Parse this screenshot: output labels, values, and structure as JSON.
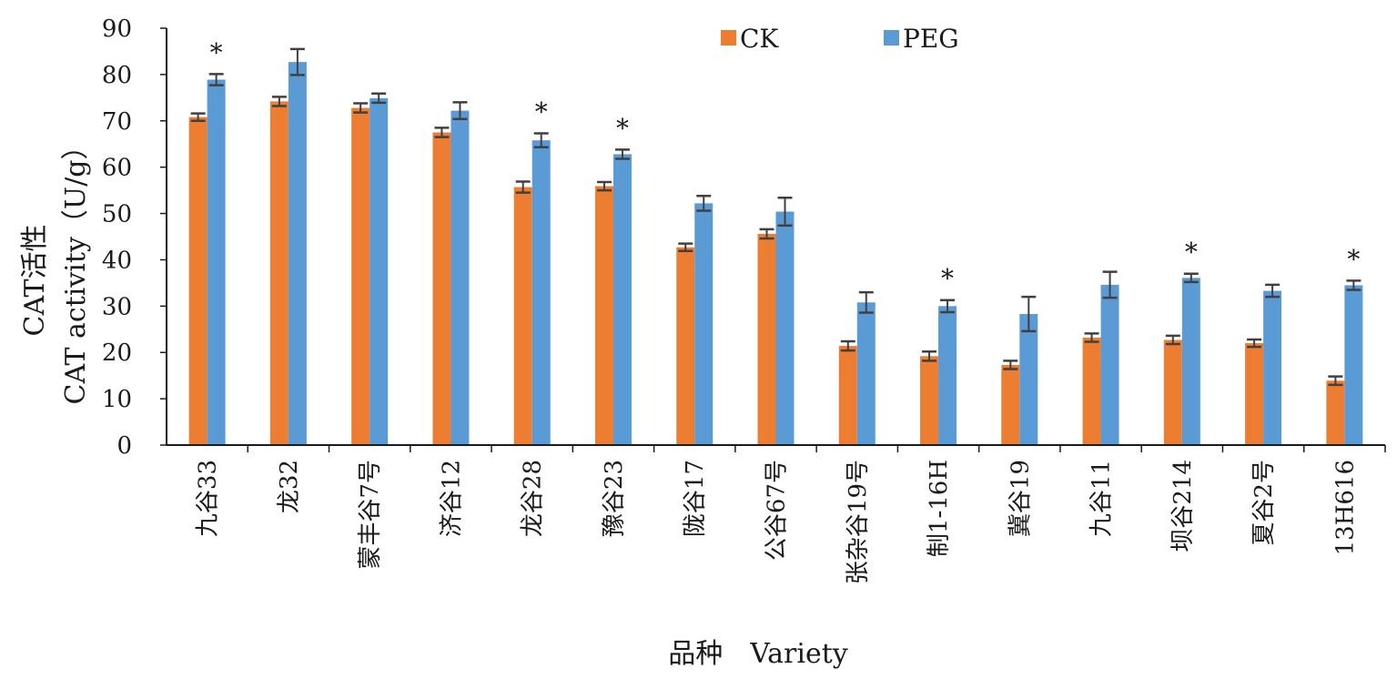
{
  "chart_data": {
    "type": "bar",
    "ylabel_cn": "CAT活性",
    "ylabel_en": "CAT activity（U/g）",
    "xlabel": "品种　Variety",
    "ylim": [
      0,
      90
    ],
    "yticks": [
      "0",
      "10",
      "20",
      "30",
      "40",
      "50",
      "60",
      "70",
      "80",
      "90"
    ],
    "categories": [
      "九谷33",
      "龙32",
      "蒙丰谷7号",
      "济谷12",
      "龙谷28",
      "豫谷23",
      "陇谷17",
      "公谷67号",
      "张杂谷19号",
      "制1-16H",
      "冀谷19",
      "九谷11",
      "坝谷214",
      "夏谷2号",
      "13H616"
    ],
    "series": [
      {
        "name": "CK",
        "color": "#ED7D31",
        "values": [
          70.8,
          74.2,
          72.8,
          67.5,
          55.7,
          55.9,
          42.7,
          45.6,
          21.4,
          19.2,
          17.3,
          23.2,
          22.7,
          22.0,
          13.9
        ],
        "errors": [
          0.8,
          1.0,
          1.0,
          1.0,
          1.2,
          0.9,
          0.8,
          1.0,
          1.0,
          1.0,
          0.9,
          0.9,
          0.9,
          0.8,
          0.9
        ]
      },
      {
        "name": "PEG",
        "color": "#5B9BD5",
        "values": [
          78.9,
          82.7,
          74.9,
          72.2,
          65.8,
          62.8,
          52.2,
          50.4,
          30.8,
          30.0,
          28.3,
          34.6,
          36.1,
          33.3,
          34.5
        ],
        "errors": [
          1.2,
          2.8,
          1.0,
          1.8,
          1.5,
          1.0,
          1.6,
          3.0,
          2.2,
          1.3,
          3.7,
          2.8,
          0.9,
          1.3,
          1.0
        ]
      }
    ],
    "significance_marker": "*",
    "significant": [
      true,
      false,
      false,
      false,
      true,
      true,
      false,
      false,
      false,
      true,
      false,
      false,
      true,
      false,
      true
    ],
    "legend_position": "top-center",
    "grid": false
  }
}
